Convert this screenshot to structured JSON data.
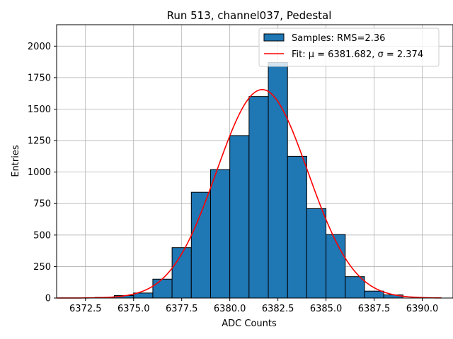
{
  "chart_data": {
    "type": "bar",
    "title": "Run 513, channel037, Pedestal",
    "xlabel": "ADC Counts",
    "ylabel": "Entries",
    "xlim": [
      6371.0,
      6391.6
    ],
    "ylim": [
      0,
      2170
    ],
    "xticks": [
      6372.5,
      6375.0,
      6377.5,
      6380.0,
      6382.5,
      6385.0,
      6387.5,
      6390.0
    ],
    "xtick_labels": [
      "6372.5",
      "6375.0",
      "6377.5",
      "6380.0",
      "6382.5",
      "6385.0",
      "6387.5",
      "6390.0"
    ],
    "yticks": [
      0,
      250,
      500,
      750,
      1000,
      1250,
      1500,
      1750,
      2000
    ],
    "ytick_labels": [
      "0",
      "250",
      "500",
      "750",
      "1000",
      "1250",
      "1500",
      "1750",
      "2000"
    ],
    "grid": true,
    "legend_position": "top-right",
    "histogram": {
      "name": "Samples: RMS=2.36",
      "color": "#1f77b4",
      "edge_color": "#000000",
      "bin_edges": [
        6373,
        6374,
        6375,
        6376,
        6377,
        6378,
        6379,
        6380,
        6381,
        6382,
        6383,
        6384,
        6385,
        6386,
        6387,
        6388,
        6389
      ],
      "values": [
        5,
        20,
        40,
        150,
        400,
        840,
        1020,
        1290,
        1600,
        1870,
        1125,
        710,
        505,
        170,
        55,
        25
      ]
    },
    "fit": {
      "name": "Fit: μ = 6381.682, σ = 2.374",
      "color": "#ff0000",
      "mu": 6381.682,
      "sigma": 2.374,
      "amplitude": 1655,
      "x_range": [
        6371.0,
        6391.0
      ]
    }
  }
}
